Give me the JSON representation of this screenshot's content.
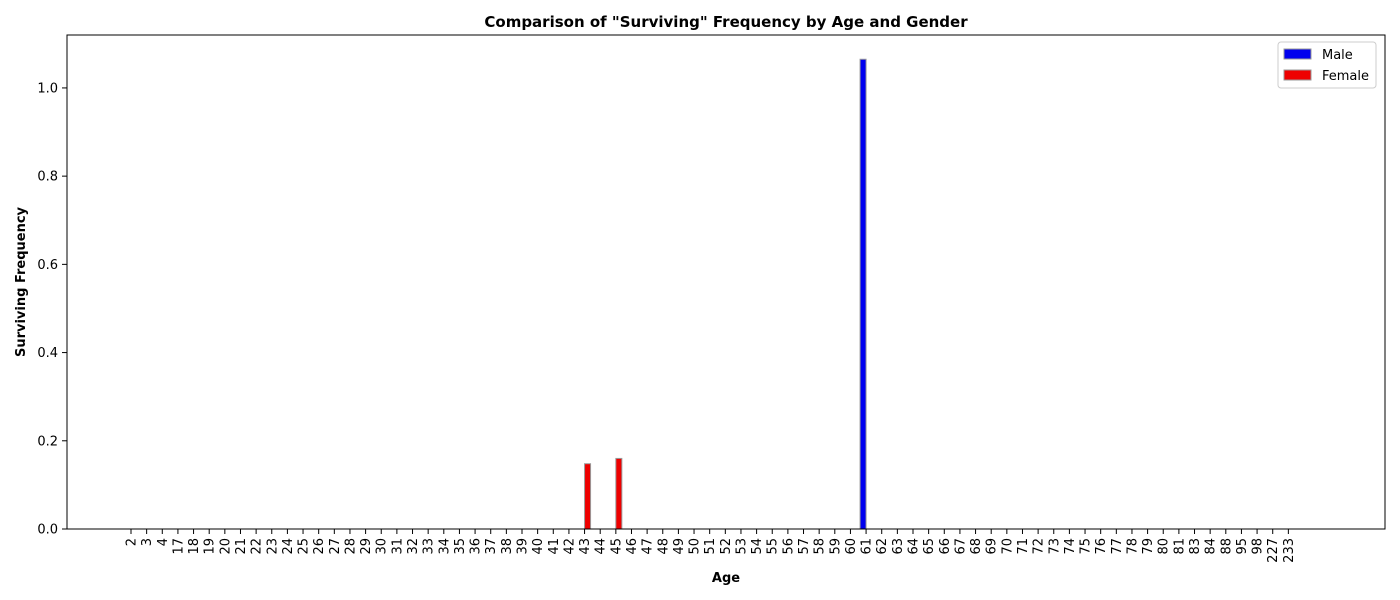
{
  "chart_data": {
    "type": "bar",
    "title": "Comparison of \"Surviving\" Frequency by Age and Gender",
    "xlabel": "Age",
    "ylabel": "Surviving Frequency",
    "ylim": [
      0,
      1.12
    ],
    "yticks": [
      "0.0",
      "0.2",
      "0.4",
      "0.6",
      "0.8",
      "1.0"
    ],
    "grid": false,
    "legend_position": "top-right",
    "categories": [
      "2",
      "3",
      "4",
      "17",
      "18",
      "19",
      "20",
      "21",
      "22",
      "23",
      "24",
      "25",
      "26",
      "27",
      "28",
      "29",
      "30",
      "31",
      "32",
      "33",
      "34",
      "35",
      "36",
      "37",
      "38",
      "39",
      "40",
      "41",
      "42",
      "43",
      "44",
      "45",
      "46",
      "47",
      "48",
      "49",
      "50",
      "51",
      "52",
      "53",
      "54",
      "55",
      "56",
      "57",
      "58",
      "59",
      "60",
      "61",
      "62",
      "63",
      "64",
      "65",
      "66",
      "67",
      "68",
      "69",
      "70",
      "71",
      "72",
      "73",
      "74",
      "75",
      "76",
      "77",
      "78",
      "79",
      "80",
      "81",
      "83",
      "84",
      "88",
      "95",
      "98",
      "227",
      "233"
    ],
    "series": [
      {
        "name": "Male",
        "color": "#0000ee",
        "values": [
          0,
          0,
          0,
          0,
          0,
          0,
          0,
          0,
          0,
          0,
          0,
          0,
          0,
          0,
          0,
          0,
          0,
          0,
          0,
          0,
          0,
          0,
          0,
          0,
          0,
          0,
          0,
          0,
          0,
          0,
          0,
          0,
          0,
          0,
          0,
          0,
          0,
          0,
          0,
          0,
          0,
          0,
          0,
          0,
          0,
          0,
          0,
          1.065,
          0,
          0,
          0,
          0,
          0,
          0,
          0,
          0,
          0,
          0,
          0,
          0,
          0,
          0,
          0,
          0,
          0,
          0,
          0,
          0,
          0,
          0,
          0,
          0,
          0,
          0,
          0
        ]
      },
      {
        "name": "Female",
        "color": "#ee0000",
        "values": [
          0,
          0,
          0,
          0,
          0,
          0,
          0,
          0,
          0,
          0,
          0,
          0,
          0,
          0,
          0,
          0,
          0,
          0,
          0,
          0,
          0,
          0,
          0,
          0,
          0,
          0,
          0,
          0,
          0,
          0.148,
          0,
          0.16,
          0,
          0,
          0,
          0,
          0,
          0,
          0,
          0,
          0,
          0,
          0,
          0,
          0,
          0,
          0,
          0,
          0,
          0,
          0,
          0,
          0,
          0,
          0,
          0,
          0,
          0,
          0,
          0,
          0,
          0,
          0,
          0,
          0,
          0,
          0,
          0,
          0,
          0,
          0,
          0,
          0,
          0,
          0
        ]
      }
    ]
  }
}
